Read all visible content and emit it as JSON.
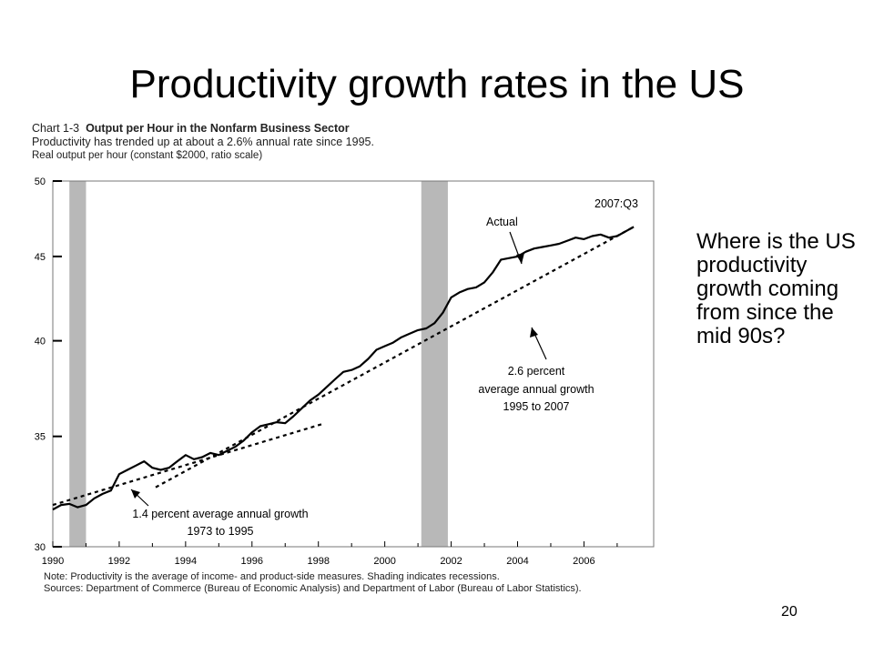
{
  "slide": {
    "title": "Productivity growth rates in the US",
    "question": "Where is the US productivity growth coming from since the mid 90s?",
    "page_number": "20"
  },
  "chart_header": {
    "chart_id": "Chart 1-3",
    "chart_title": "Output per Hour in the Nonfarm Business Sector",
    "subtitle": "Productivity has trended up at about a 2.6% annual rate since 1995.",
    "axis_label": "Real output per hour (constant $2000, ratio scale)"
  },
  "notes": {
    "note": "Note: Productivity is the average of income- and product-side measures. Shading indicates recessions.",
    "sources": "Sources: Department of Commerce (Bureau of Economic Analysis) and Department of Labor (Bureau of Labor Statistics)."
  },
  "chart_data": {
    "type": "line",
    "ylabel": "Real output per hour (constant $2000, ratio scale)",
    "xlim": [
      1990,
      2008.1
    ],
    "ylim": [
      30,
      50
    ],
    "y_scale": "log",
    "x_ticks": [
      "1990",
      "1992",
      "1994",
      "1996",
      "1998",
      "2000",
      "2002",
      "2004",
      "2006"
    ],
    "y_ticks": [
      "30",
      "35",
      "40",
      "45",
      "50"
    ],
    "recessions": [
      [
        1990.5,
        1991.0
      ],
      [
        2001.1,
        2001.9
      ]
    ],
    "series": [
      {
        "name": "Actual",
        "style": "solid",
        "x": [
          1990.0,
          1990.25,
          1990.5,
          1990.75,
          1991.0,
          1991.25,
          1991.5,
          1991.75,
          1992.0,
          1992.25,
          1992.5,
          1992.75,
          1993.0,
          1993.25,
          1993.5,
          1993.75,
          1994.0,
          1994.25,
          1994.5,
          1994.75,
          1995.0,
          1995.25,
          1995.5,
          1995.75,
          1996.0,
          1996.25,
          1996.5,
          1996.75,
          1997.0,
          1997.25,
          1997.5,
          1997.75,
          1998.0,
          1998.25,
          1998.5,
          1998.75,
          1999.0,
          1999.25,
          1999.5,
          1999.75,
          2000.0,
          2000.25,
          2000.5,
          2000.75,
          2001.0,
          2001.25,
          2001.5,
          2001.75,
          2002.0,
          2002.25,
          2002.5,
          2002.75,
          2003.0,
          2003.25,
          2003.5,
          2003.75,
          2004.0,
          2004.25,
          2004.5,
          2004.75,
          2005.0,
          2005.25,
          2005.5,
          2005.75,
          2006.0,
          2006.25,
          2006.5,
          2006.75,
          2007.0,
          2007.25,
          2007.5
        ],
        "y": [
          31.6,
          31.8,
          31.85,
          31.7,
          31.8,
          32.1,
          32.3,
          32.45,
          33.2,
          33.4,
          33.6,
          33.8,
          33.5,
          33.4,
          33.5,
          33.8,
          34.1,
          33.9,
          34.0,
          34.2,
          34.1,
          34.3,
          34.5,
          34.8,
          35.2,
          35.5,
          35.6,
          35.7,
          35.65,
          36.0,
          36.4,
          36.8,
          37.1,
          37.5,
          37.9,
          38.3,
          38.4,
          38.6,
          39.0,
          39.5,
          39.7,
          39.9,
          40.2,
          40.4,
          40.6,
          40.7,
          41.0,
          41.6,
          42.5,
          42.8,
          43.0,
          43.1,
          43.4,
          44.0,
          44.8,
          44.9,
          45.0,
          45.3,
          45.5,
          45.6,
          45.7,
          45.8,
          46.0,
          46.2,
          46.1,
          46.3,
          46.4,
          46.2,
          46.3,
          46.6,
          46.9
        ]
      },
      {
        "name": "1.4 percent average annual growth 1973 to 1995",
        "style": "dashed",
        "x": [
          1990.0,
          1998.1
        ],
        "y": [
          31.8,
          35.6
        ]
      },
      {
        "name": "2.6 percent average annual growth 1995 to 2007",
        "style": "dashed",
        "x": [
          1993.1,
          2007.5
        ],
        "y": [
          32.6,
          46.9
        ]
      }
    ],
    "annotations": [
      {
        "text": "2007:Q3"
      },
      {
        "text": "Actual"
      },
      {
        "text": "2.6 percent"
      },
      {
        "text": "average annual growth"
      },
      {
        "text": "1995 to 2007"
      },
      {
        "text": "1.4 percent average annual growth"
      },
      {
        "text": "1973 to 1995"
      }
    ]
  }
}
